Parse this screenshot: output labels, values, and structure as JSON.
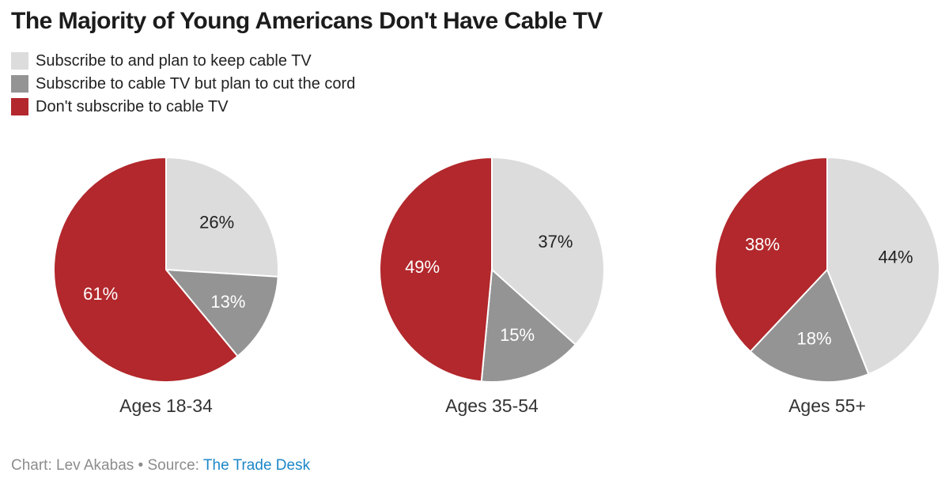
{
  "title": "The Majority of Young Americans Don't Have Cable TV",
  "chart_data": {
    "type": "pie",
    "title": "The Majority of Young Americans Don't Have Cable TV",
    "legend_position": "top-left",
    "start_angle": "12 o'clock, clockwise",
    "series_labels": [
      "Subscribe to and plan to keep cable TV",
      "Subscribe to cable TV but plan to cut the cord",
      "Don't subscribe to cable TV"
    ],
    "colors": [
      "#dcdcdc",
      "#949494",
      "#b2282c"
    ],
    "label_text_colors": [
      "#222222",
      "#ffffff",
      "#ffffff"
    ],
    "pies": [
      {
        "category": "Ages 18-34",
        "values": [
          26,
          13,
          61
        ],
        "value_labels": [
          "26%",
          "13%",
          "61%"
        ]
      },
      {
        "category": "Ages 35-54",
        "values": [
          37,
          15,
          49
        ],
        "value_labels": [
          "37%",
          "15%",
          "49%"
        ]
      },
      {
        "category": "Ages 55+",
        "values": [
          44,
          18,
          38
        ],
        "value_labels": [
          "44%",
          "18%",
          "38%"
        ]
      }
    ]
  },
  "footer": {
    "credit": "Chart: Lev Akabas",
    "separator": "•",
    "source_label": "Source:",
    "source_link_text": "The Trade Desk",
    "link_color": "#1d87c8",
    "text_color": "#8c8c8c"
  }
}
